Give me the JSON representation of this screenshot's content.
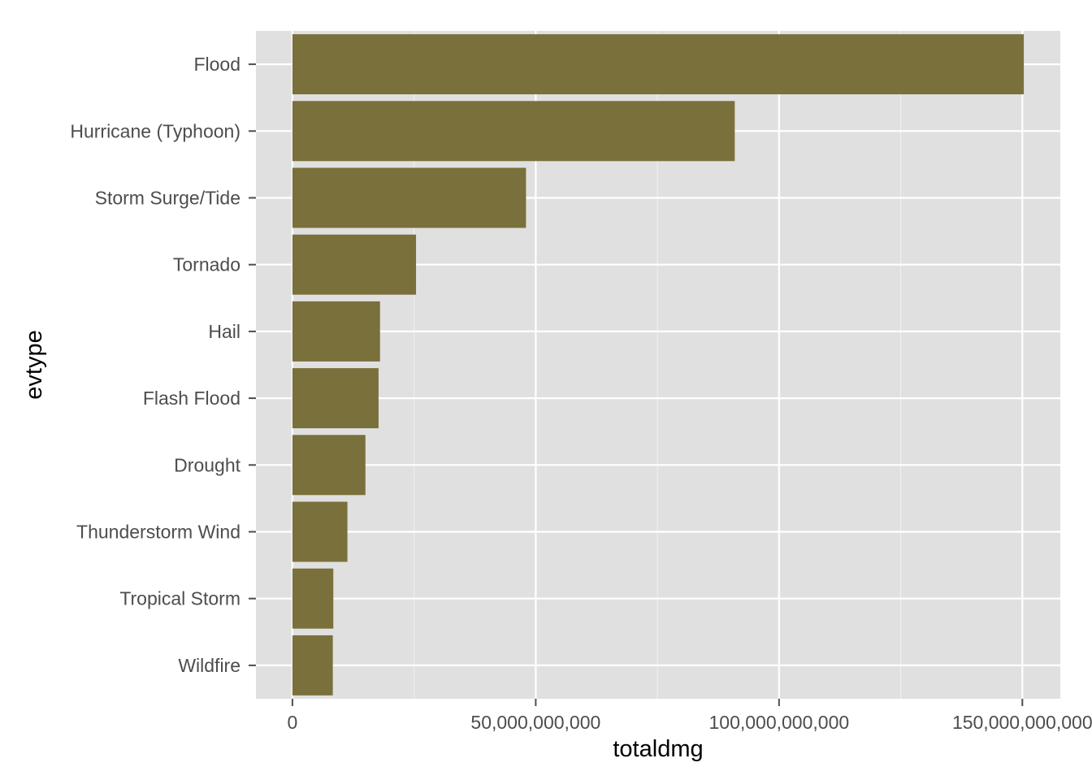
{
  "chart_data": {
    "type": "bar",
    "orientation": "horizontal",
    "title": "",
    "xlabel": "totaldmg",
    "ylabel": "evtype",
    "categories": [
      "Flood",
      "Hurricane (Typhoon)",
      "Storm Surge/Tide",
      "Tornado",
      "Hail",
      "Flash Flood",
      "Drought",
      "Thunderstorm Wind",
      "Tropical Storm",
      "Wildfire"
    ],
    "values": [
      150300000000,
      90900000000,
      48000000000,
      25400000000,
      18000000000,
      17700000000,
      15000000000,
      11300000000,
      8400000000,
      8300000000
    ],
    "xlim": [
      -7500000000,
      157800000000
    ],
    "xticks": [
      0,
      50000000000,
      100000000000,
      150000000000
    ],
    "xtick_labels": [
      "0",
      "50,000,000,000",
      "100,000,000,000",
      "150,000,000,000"
    ],
    "grid": true,
    "legend": "none",
    "colors": {
      "bar": "#7a703b",
      "panel": "#e0e0e0",
      "grid_major": "#ffffff",
      "grid_minor": "#f0f0f0",
      "tick_text": "#4d4d4d"
    }
  }
}
